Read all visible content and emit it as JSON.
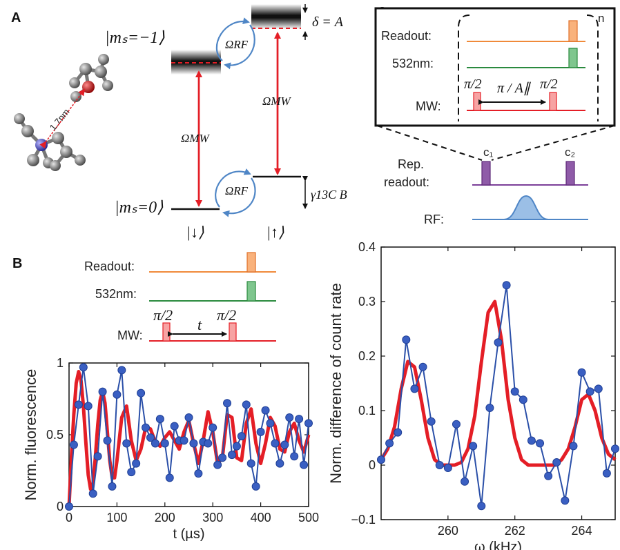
{
  "panel_labels": {
    "a": "A",
    "b": "B",
    "c": "C"
  },
  "panel_a": {
    "distance_label": "1.7nm",
    "ms_minus1_label": "|mₛ=−1⟩",
    "ms_0_label": "|mₛ=0⟩",
    "omega_rf_label_top": "ΩRF",
    "omega_rf_label_bottom": "ΩRF",
    "omega_mw_label_left": "ΩMW",
    "omega_mw_label_right": "ΩMW",
    "delta_label": "δ = A",
    "gamma_label": "γ13C B",
    "down_label": "|↓⟩",
    "up_label": "|↑⟩",
    "colors": {
      "mw": "#e41e26",
      "rf": "#4f86c6"
    }
  },
  "panel_b": {
    "rows": [
      {
        "label": "Readout:",
        "color": "#f08a3a"
      },
      {
        "label": "532nm:",
        "color": "#2a8a3e"
      },
      {
        "label": "MW:",
        "color": "#e41e26"
      }
    ],
    "pi2_left": "π/2",
    "pi2_right": "π/2",
    "t_label": "t"
  },
  "panel_c": {
    "rows": [
      {
        "label": "Readout:",
        "color": "#f08a3a"
      },
      {
        "label": "532nm:",
        "color": "#2a8a3e"
      },
      {
        "label": "MW:",
        "color": "#e41e26"
      }
    ],
    "pi2_left": "π/2",
    "pi2_right": "π/2",
    "wait_label": "π / A∥",
    "n_label": "n",
    "rep_readout_label_1": "Rep.",
    "rep_readout_label_2": "readout:",
    "rf_label": "RF:",
    "c1_label": "c₁",
    "c2_label": "c₂",
    "colors": {
      "rep": "#7b3f98",
      "rf": "#4f86c6"
    }
  },
  "chart_data": [
    {
      "type": "line",
      "xlabel": "t (µs)",
      "ylabel": "Norm. fluorescence",
      "xlim": [
        0,
        500
      ],
      "ylim": [
        0,
        1
      ],
      "xticks": [
        "0",
        "100",
        "200",
        "300",
        "400",
        "500"
      ],
      "yticks": [
        "0",
        "0.5",
        "1"
      ],
      "series": [
        {
          "style": "markers-line",
          "color": "#2a4fa8",
          "x": [
            0,
            10,
            20,
            30,
            40,
            50,
            60,
            70,
            80,
            90,
            100,
            110,
            120,
            130,
            140,
            150,
            160,
            170,
            180,
            190,
            200,
            210,
            220,
            230,
            240,
            250,
            260,
            270,
            280,
            290,
            300,
            310,
            320,
            330,
            340,
            350,
            360,
            370,
            380,
            390,
            400,
            410,
            420,
            430,
            440,
            450,
            460,
            470,
            480,
            490,
            500
          ],
          "y": [
            0.0,
            0.43,
            0.71,
            0.97,
            0.7,
            0.09,
            0.35,
            0.8,
            0.46,
            0.14,
            0.78,
            0.95,
            0.44,
            0.24,
            0.3,
            0.79,
            0.55,
            0.48,
            0.44,
            0.61,
            0.44,
            0.2,
            0.56,
            0.46,
            0.46,
            0.62,
            0.44,
            0.23,
            0.45,
            0.44,
            0.55,
            0.29,
            0.34,
            0.72,
            0.36,
            0.42,
            0.49,
            0.71,
            0.3,
            0.14,
            0.52,
            0.67,
            0.58,
            0.44,
            0.3,
            0.43,
            0.62,
            0.35,
            0.61,
            0.29,
            0.58
          ]
        },
        {
          "style": "fit-curve",
          "color": "#e41e26",
          "x": [
            0,
            5,
            10,
            15,
            20,
            25,
            30,
            35,
            40,
            45,
            50,
            55,
            60,
            65,
            70,
            75,
            80,
            85,
            90,
            95,
            100,
            110,
            120,
            130,
            140,
            150,
            160,
            170,
            180,
            190,
            200,
            210,
            220,
            230,
            240,
            250,
            260,
            270,
            280,
            290,
            300,
            310,
            320,
            330,
            340,
            350,
            360,
            370,
            380,
            390,
            400,
            410,
            420,
            430,
            440,
            450,
            460,
            470,
            480,
            490,
            500
          ],
          "y": [
            0.0,
            0.35,
            0.64,
            0.86,
            0.94,
            0.88,
            0.7,
            0.45,
            0.22,
            0.12,
            0.16,
            0.35,
            0.57,
            0.74,
            0.8,
            0.72,
            0.52,
            0.32,
            0.2,
            0.2,
            0.32,
            0.62,
            0.7,
            0.46,
            0.32,
            0.4,
            0.55,
            0.54,
            0.45,
            0.42,
            0.48,
            0.52,
            0.46,
            0.4,
            0.52,
            0.6,
            0.44,
            0.3,
            0.46,
            0.66,
            0.52,
            0.3,
            0.34,
            0.64,
            0.62,
            0.34,
            0.32,
            0.58,
            0.68,
            0.44,
            0.3,
            0.44,
            0.62,
            0.56,
            0.4,
            0.38,
            0.52,
            0.58,
            0.46,
            0.38,
            0.5
          ]
        }
      ]
    },
    {
      "type": "line",
      "xlabel": "ω (kHz)",
      "ylabel": "Norm. difference of count rate",
      "xlim": [
        258.0,
        265.0
      ],
      "ylim": [
        -0.1,
        0.4
      ],
      "xticks": [
        "260",
        "262",
        "264"
      ],
      "yticks": [
        "−0.1",
        "0",
        "0.1",
        "0.2",
        "0.3",
        "0.4"
      ],
      "series": [
        {
          "style": "markers-line",
          "color": "#2a4fa8",
          "x": [
            258.0,
            258.25,
            258.5,
            258.75,
            259.0,
            259.25,
            259.5,
            259.75,
            260.0,
            260.25,
            260.5,
            260.75,
            261.0,
            261.25,
            261.5,
            261.75,
            262.0,
            262.25,
            262.5,
            262.75,
            263.0,
            263.25,
            263.5,
            263.75,
            264.0,
            264.25,
            264.5,
            264.75,
            265.0
          ],
          "y": [
            0.01,
            0.04,
            0.06,
            0.23,
            0.14,
            0.18,
            0.08,
            0.0,
            -0.005,
            0.075,
            -0.03,
            0.035,
            -0.075,
            0.105,
            0.225,
            0.33,
            0.135,
            0.12,
            0.045,
            0.04,
            -0.02,
            0.005,
            -0.065,
            0.035,
            0.17,
            0.135,
            0.14,
            -0.015,
            0.03
          ]
        },
        {
          "style": "fit-curve",
          "color": "#e41e26",
          "x": [
            258.0,
            258.2,
            258.4,
            258.6,
            258.8,
            259.0,
            259.2,
            259.4,
            259.6,
            259.8,
            260.0,
            260.2,
            260.4,
            260.6,
            260.8,
            261.0,
            261.2,
            261.4,
            261.6,
            261.8,
            262.0,
            262.2,
            262.4,
            262.6,
            262.8,
            263.0,
            263.2,
            263.4,
            263.6,
            263.8,
            264.0,
            264.2,
            264.4,
            264.6,
            264.8,
            265.0
          ],
          "y": [
            0.01,
            0.03,
            0.07,
            0.14,
            0.19,
            0.18,
            0.12,
            0.05,
            0.01,
            0.0,
            0.0,
            0.0,
            0.005,
            0.03,
            0.09,
            0.19,
            0.28,
            0.3,
            0.23,
            0.12,
            0.05,
            0.01,
            0.0,
            0.0,
            0.0,
            0.0,
            0.0,
            0.01,
            0.03,
            0.07,
            0.12,
            0.13,
            0.1,
            0.05,
            0.02,
            0.01
          ]
        }
      ]
    }
  ]
}
